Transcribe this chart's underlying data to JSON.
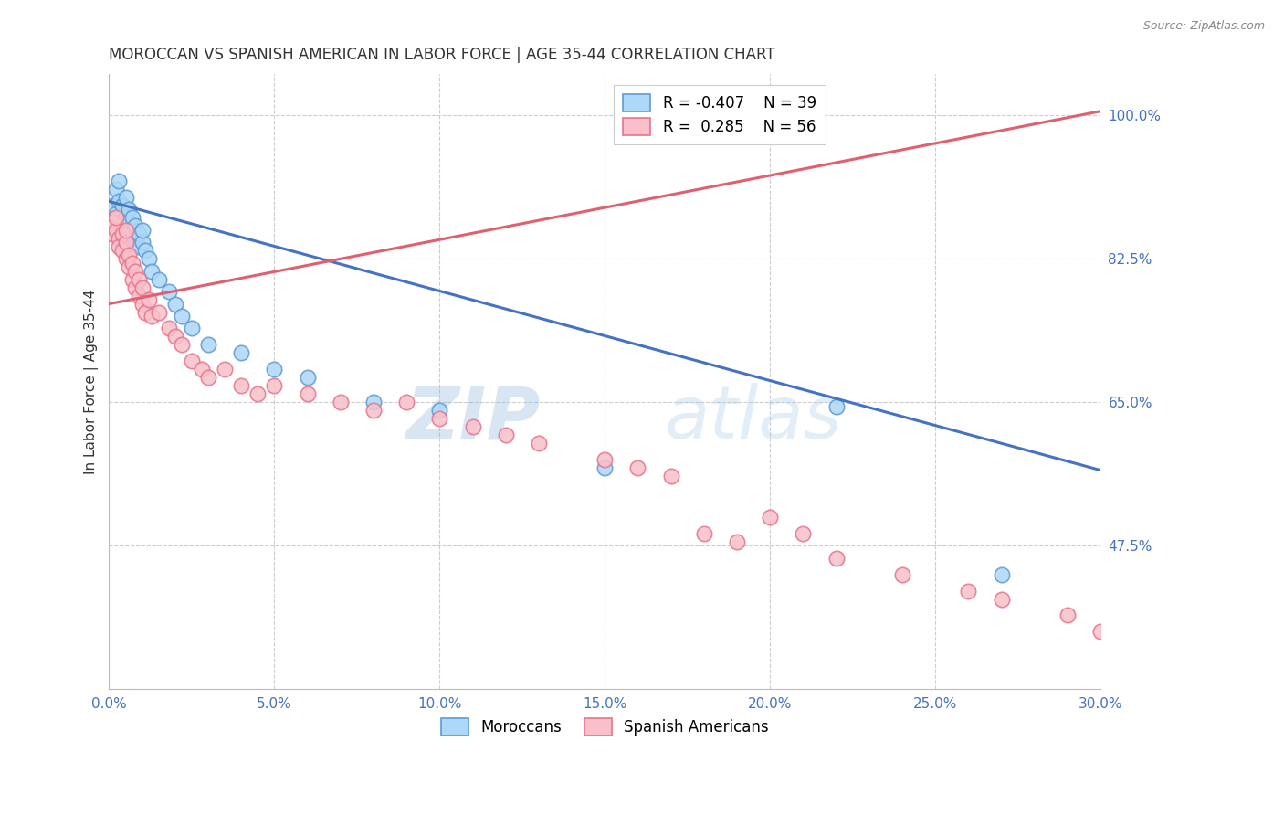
{
  "title": "MOROCCAN VS SPANISH AMERICAN IN LABOR FORCE | AGE 35-44 CORRELATION CHART",
  "source": "Source: ZipAtlas.com",
  "ylabel": "In Labor Force | Age 35-44",
  "xlim": [
    0.0,
    0.3
  ],
  "ylim": [
    0.3,
    1.05
  ],
  "yticks": [
    0.475,
    0.65,
    0.825,
    1.0
  ],
  "ytick_labels": [
    "47.5%",
    "65.0%",
    "82.5%",
    "100.0%"
  ],
  "xticks": [
    0.0,
    0.05,
    0.1,
    0.15,
    0.2,
    0.25,
    0.3
  ],
  "xtick_labels": [
    "0.0%",
    "5.0%",
    "10.0%",
    "15.0%",
    "20.0%",
    "25.0%",
    "30.0%"
  ],
  "blue_color": "#ADD8F7",
  "pink_color": "#F9C0CB",
  "blue_edge_color": "#5B9BD5",
  "pink_edge_color": "#E8748A",
  "blue_line_color": "#4472C4",
  "pink_line_color": "#E06070",
  "blue_R": -0.407,
  "blue_N": 39,
  "pink_R": 0.285,
  "pink_N": 56,
  "legend_label_blue": "Moroccans",
  "legend_label_pink": "Spanish Americans",
  "blue_line_x0": 0.0,
  "blue_line_y0": 0.895,
  "blue_line_x1": 0.3,
  "blue_line_y1": 0.567,
  "pink_line_x0": 0.0,
  "pink_line_y0": 0.77,
  "pink_line_x1": 0.3,
  "pink_line_y1": 1.005,
  "blue_x": [
    0.001,
    0.002,
    0.002,
    0.003,
    0.003,
    0.003,
    0.004,
    0.004,
    0.005,
    0.005,
    0.005,
    0.006,
    0.006,
    0.006,
    0.007,
    0.007,
    0.008,
    0.008,
    0.009,
    0.009,
    0.01,
    0.01,
    0.011,
    0.012,
    0.013,
    0.015,
    0.018,
    0.02,
    0.022,
    0.025,
    0.03,
    0.04,
    0.05,
    0.06,
    0.08,
    0.1,
    0.15,
    0.22,
    0.27
  ],
  "blue_y": [
    0.89,
    0.88,
    0.91,
    0.87,
    0.895,
    0.92,
    0.86,
    0.89,
    0.85,
    0.875,
    0.9,
    0.855,
    0.87,
    0.885,
    0.86,
    0.875,
    0.85,
    0.865,
    0.84,
    0.855,
    0.845,
    0.86,
    0.835,
    0.825,
    0.81,
    0.8,
    0.785,
    0.77,
    0.755,
    0.74,
    0.72,
    0.71,
    0.69,
    0.68,
    0.65,
    0.64,
    0.57,
    0.645,
    0.44
  ],
  "pink_x": [
    0.001,
    0.001,
    0.002,
    0.002,
    0.003,
    0.003,
    0.004,
    0.004,
    0.005,
    0.005,
    0.005,
    0.006,
    0.006,
    0.007,
    0.007,
    0.008,
    0.008,
    0.009,
    0.009,
    0.01,
    0.01,
    0.011,
    0.012,
    0.013,
    0.015,
    0.018,
    0.02,
    0.022,
    0.025,
    0.028,
    0.03,
    0.035,
    0.04,
    0.045,
    0.05,
    0.06,
    0.07,
    0.08,
    0.09,
    0.1,
    0.11,
    0.12,
    0.13,
    0.15,
    0.16,
    0.17,
    0.18,
    0.19,
    0.2,
    0.21,
    0.22,
    0.24,
    0.26,
    0.27,
    0.29,
    0.3
  ],
  "pink_y": [
    0.87,
    0.855,
    0.86,
    0.875,
    0.85,
    0.84,
    0.855,
    0.835,
    0.845,
    0.825,
    0.86,
    0.815,
    0.83,
    0.82,
    0.8,
    0.81,
    0.79,
    0.8,
    0.78,
    0.79,
    0.77,
    0.76,
    0.775,
    0.755,
    0.76,
    0.74,
    0.73,
    0.72,
    0.7,
    0.69,
    0.68,
    0.69,
    0.67,
    0.66,
    0.67,
    0.66,
    0.65,
    0.64,
    0.65,
    0.63,
    0.62,
    0.61,
    0.6,
    0.58,
    0.57,
    0.56,
    0.49,
    0.48,
    0.51,
    0.49,
    0.46,
    0.44,
    0.42,
    0.41,
    0.39,
    0.37
  ],
  "background_color": "#FFFFFF",
  "grid_color": "#CCCCCC",
  "axis_color": "#4472C4",
  "tick_color": "#666666",
  "watermark_zip": "ZIP",
  "watermark_atlas": "atlas",
  "watermark_color": "#C8DCF0",
  "watermark_alpha": 0.35
}
